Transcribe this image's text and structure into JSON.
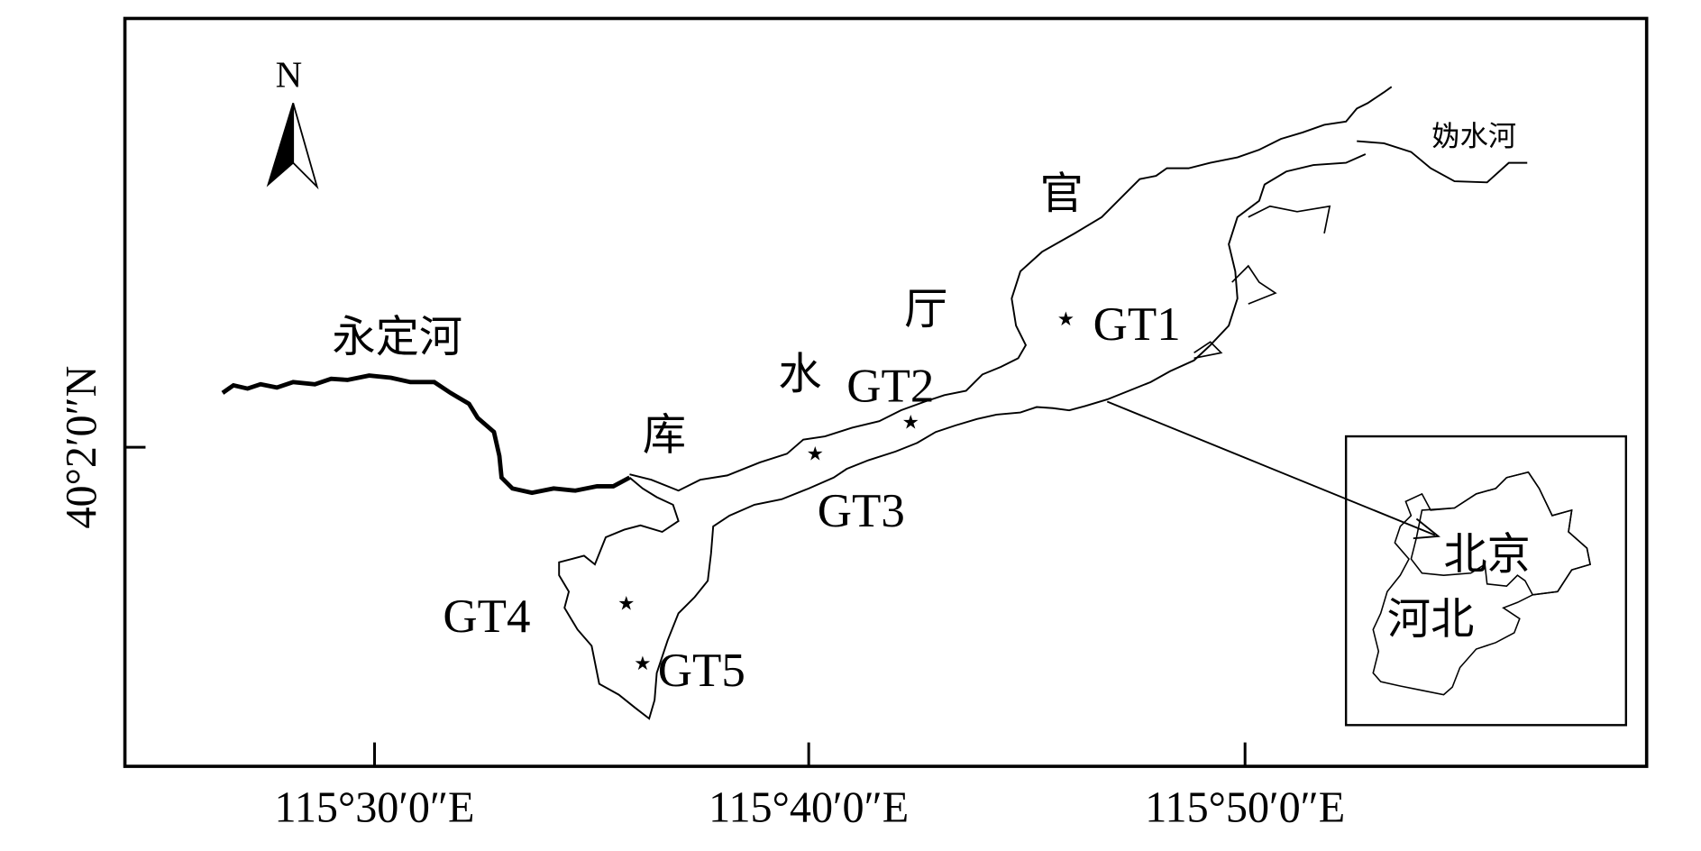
{
  "map": {
    "north_label": "N",
    "axes": {
      "x_ticks": [
        "115°30′0″E",
        "115°40′0″E",
        "115°50′0″E"
      ],
      "y_ticks": [
        "40°2′0″N"
      ]
    },
    "place_labels": {
      "reservoir_chars": [
        "官",
        "厅",
        "水",
        "库"
      ],
      "yongding_river": "永定河",
      "gui_river": "妫水河"
    },
    "sites": [
      {
        "id": "GT1"
      },
      {
        "id": "GT2"
      },
      {
        "id": "GT3"
      },
      {
        "id": "GT4"
      },
      {
        "id": "GT5"
      }
    ],
    "inset": {
      "beijing": "北京",
      "hebei": "河北"
    },
    "colors": {
      "line": "#000000",
      "background": "#ffffff"
    }
  }
}
